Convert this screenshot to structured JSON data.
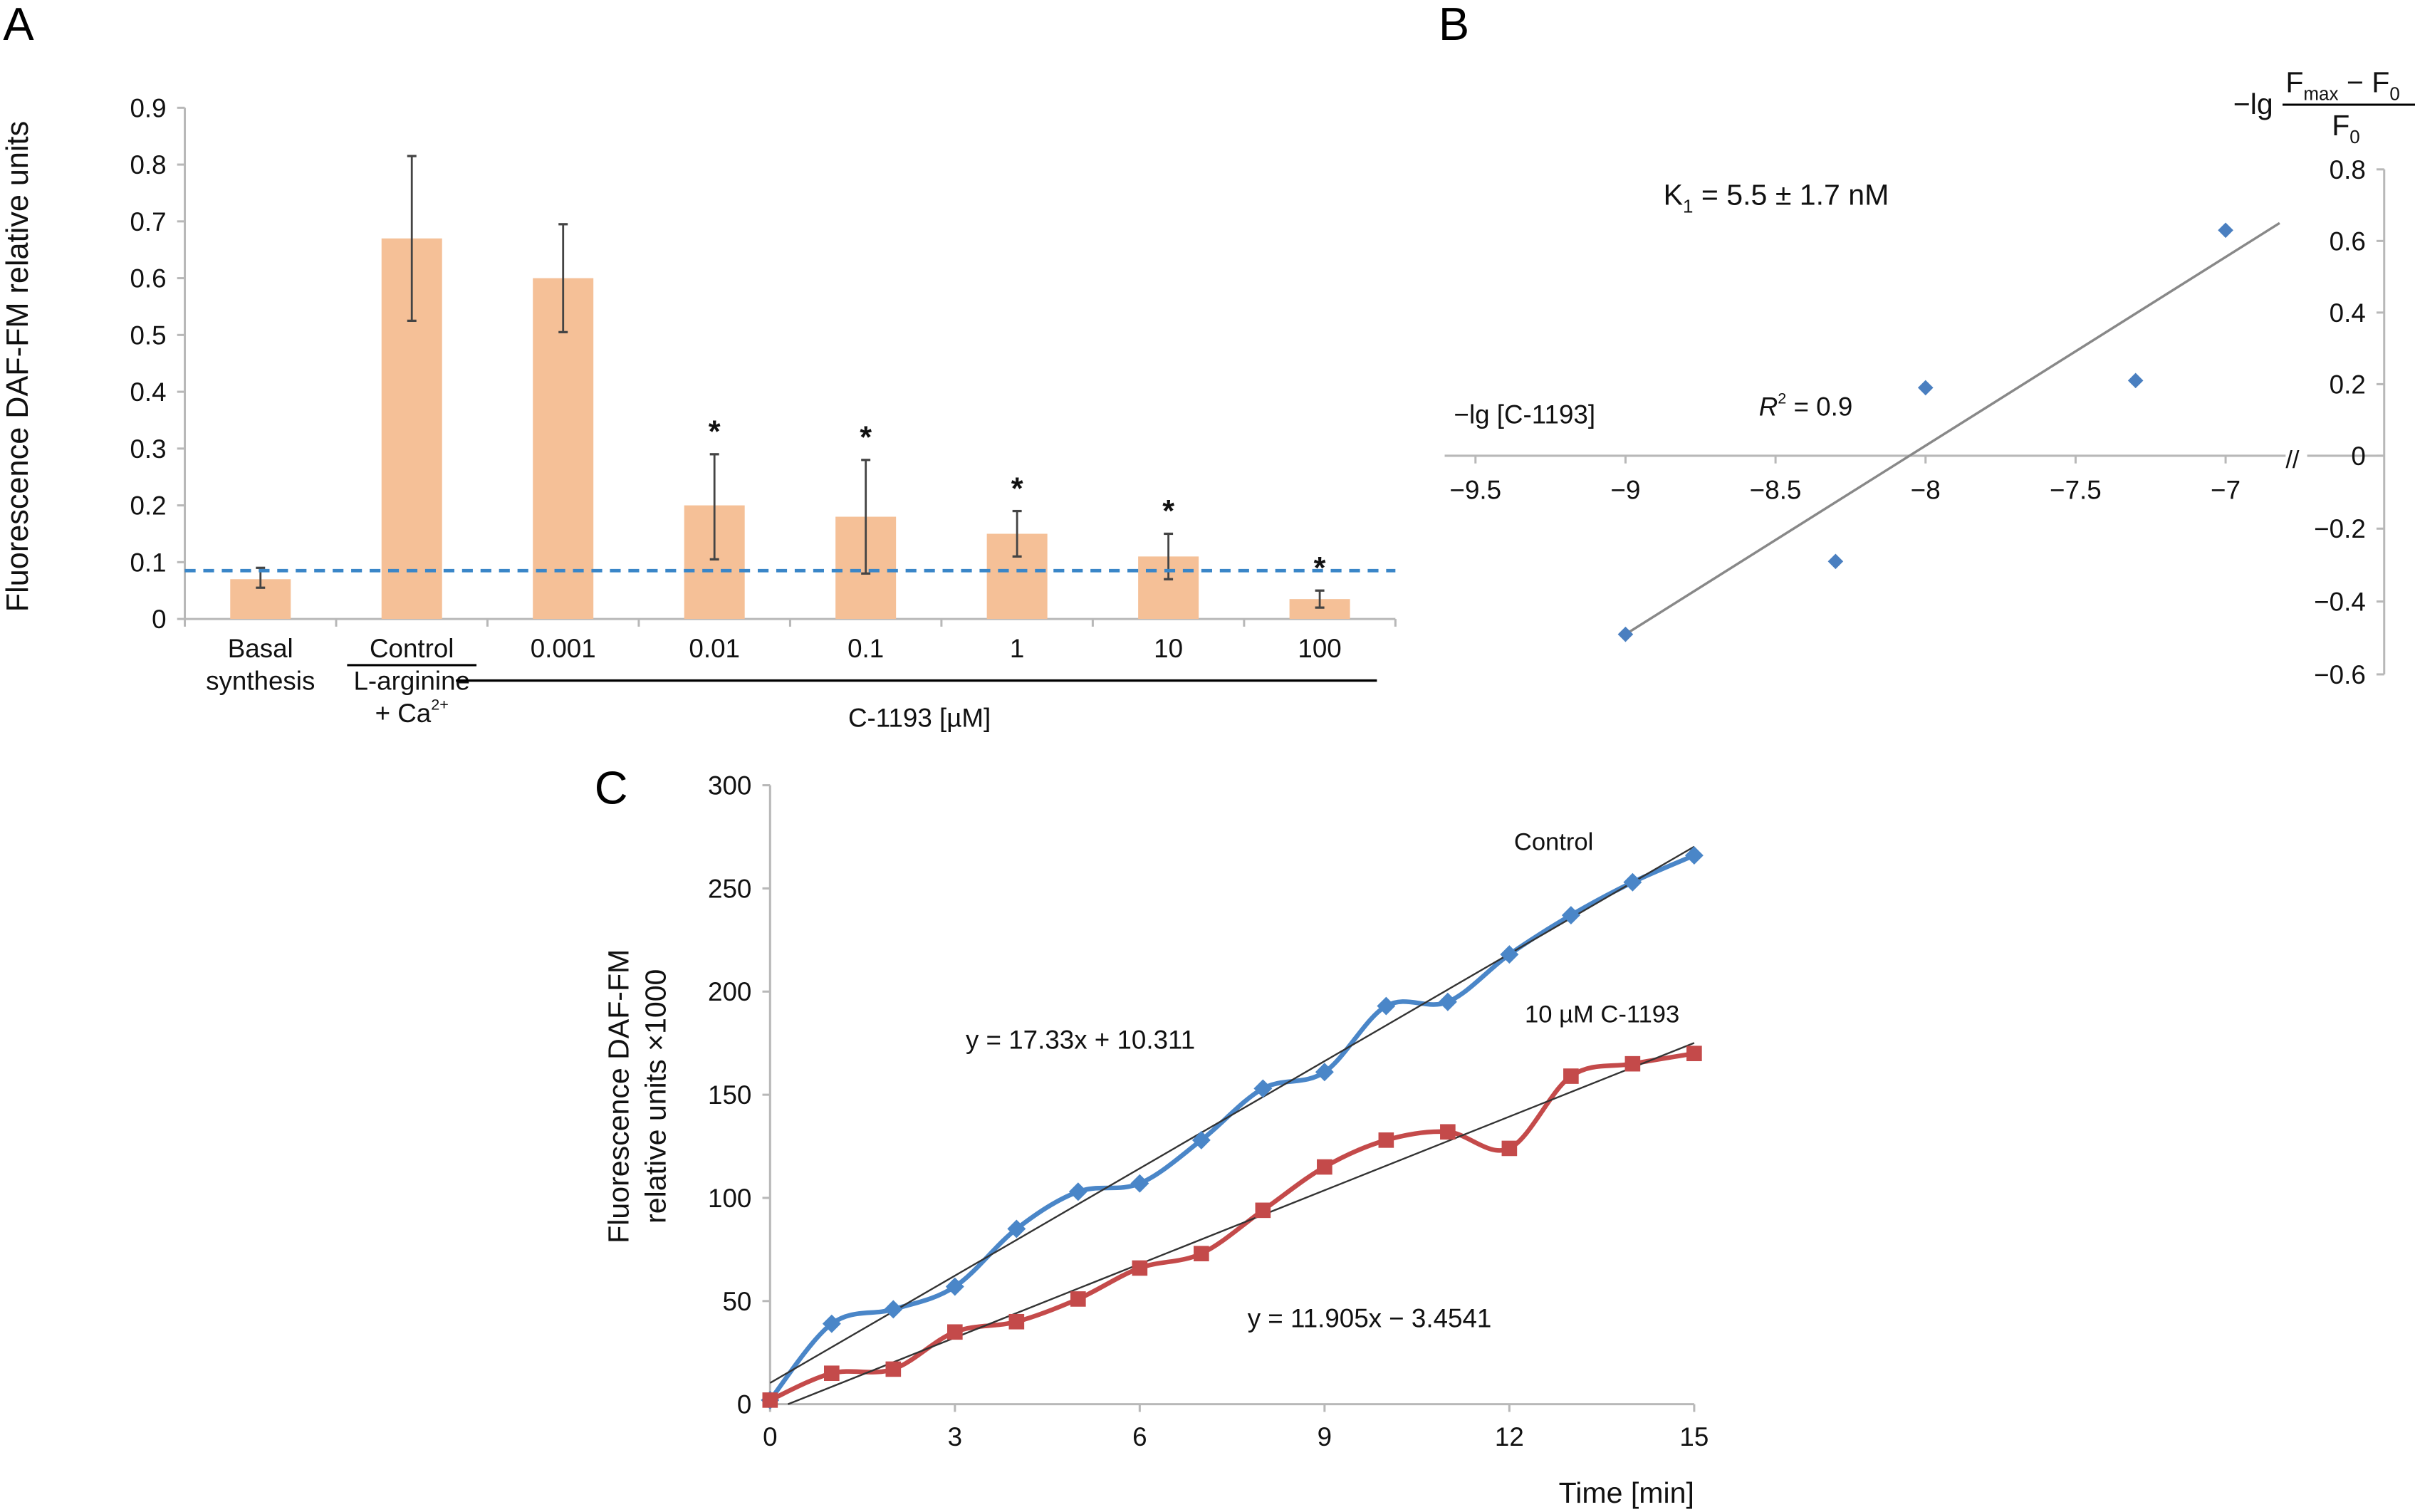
{
  "figure": {
    "panels": [
      "A",
      "B",
      "C"
    ]
  },
  "colors": {
    "bar": "#f5c097",
    "dashed_line": "#3a86c8",
    "control_series": "#4a86c8",
    "c1193_series": "#c44a4a",
    "trendline": "#333333",
    "scatter": "#4a7fc0"
  },
  "chart_data": [
    {
      "id": "A",
      "type": "bar",
      "panel_label": "A",
      "title": "",
      "ylabel": "Fluorescence DAF-FM relative units",
      "xlabel": "C-1193 [µM]",
      "ylim": [
        0,
        0.9
      ],
      "yticks": [
        "0",
        "0.1",
        "0.2",
        "0.3",
        "0.4",
        "0.5",
        "0.6",
        "0.7",
        "0.8",
        "0.9"
      ],
      "categories": [
        "Basal synthesis",
        "Control L-arginine + Ca2+",
        "0.001",
        "0.01",
        "0.1",
        "1",
        "10",
        "100"
      ],
      "category_labels": [
        {
          "lines": [
            "Basal",
            "synthesis"
          ]
        },
        {
          "lines": [
            "Control",
            "L-arginine",
            "+ Ca"
          ],
          "superscript": "2+"
        },
        {
          "lines": [
            "0.001"
          ]
        },
        {
          "lines": [
            "0.01"
          ]
        },
        {
          "lines": [
            "0.1"
          ]
        },
        {
          "lines": [
            "1"
          ]
        },
        {
          "lines": [
            "10"
          ]
        },
        {
          "lines": [
            "100"
          ]
        }
      ],
      "values": [
        0.07,
        0.67,
        0.6,
        0.2,
        0.18,
        0.15,
        0.11,
        0.035
      ],
      "error_low": [
        0.055,
        0.525,
        0.505,
        0.105,
        0.08,
        0.11,
        0.07,
        0.02
      ],
      "error_high": [
        0.09,
        0.815,
        0.695,
        0.29,
        0.28,
        0.19,
        0.15,
        0.05
      ],
      "significance": [
        "",
        "",
        "",
        "*",
        "*",
        "*",
        "*",
        "*"
      ],
      "reference_line": 0.085,
      "group_label": "C-1193 [µM]",
      "grid": false
    },
    {
      "id": "B",
      "type": "scatter",
      "panel_label": "B",
      "xlabel": "−lg [C-1193]",
      "ylabel_parts": {
        "prefix": "−lg",
        "numerator": "F",
        "numerator_sub": "max",
        "numerator_rest": " − F",
        "numerator_rest_sub": "0",
        "denominator": "F",
        "denominator_sub": "0"
      },
      "xlim": [
        -9.5,
        -6.8
      ],
      "ylim": [
        -0.6,
        0.8
      ],
      "xticks": [
        "−9.5",
        "−9",
        "−8.5",
        "−8",
        "−7.5",
        "−7"
      ],
      "xtick_values": [
        -9.5,
        -9,
        -8.5,
        -8,
        -7.5,
        -7
      ],
      "yticks": [
        "−0.6",
        "−0.4",
        "−0.2",
        "0",
        "0.2",
        "0.4",
        "0.6",
        "0.8"
      ],
      "ytick_values": [
        -0.6,
        -0.4,
        -0.2,
        0,
        0.2,
        0.4,
        0.6,
        0.8
      ],
      "points": [
        {
          "x": -9.0,
          "y": -0.49
        },
        {
          "x": -8.3,
          "y": -0.29
        },
        {
          "x": -8.0,
          "y": 0.19
        },
        {
          "x": -7.3,
          "y": 0.21
        },
        {
          "x": -7.0,
          "y": 0.63
        }
      ],
      "trendline": {
        "x": [
          -9.0,
          -6.82
        ],
        "y": [
          -0.49,
          0.65
        ]
      },
      "annotations": {
        "ki": "K",
        "ki_sub": "1",
        "ki_rest": " = 5.5 ± 1.7 nM",
        "r2_r": "R",
        "r2_sup": "2",
        "r2_rest": " = 0.9",
        "axis_break": "//"
      },
      "grid": false
    },
    {
      "id": "C",
      "type": "line",
      "panel_label": "C",
      "xlabel": "Time [min]",
      "ylabel_lines": [
        "Fluorescence DAF-FM",
        "relative units ×1000"
      ],
      "xlim": [
        0,
        15
      ],
      "ylim": [
        0,
        300
      ],
      "xticks": [
        "0",
        "3",
        "6",
        "9",
        "12",
        "15"
      ],
      "yticks": [
        "0",
        "50",
        "100",
        "150",
        "200",
        "250",
        "300"
      ],
      "x": [
        0,
        1,
        2,
        3,
        4,
        5,
        6,
        7,
        8,
        9,
        10,
        11,
        12,
        13,
        14,
        15
      ],
      "series": [
        {
          "name": "Control",
          "marker": "diamond",
          "values": [
            2,
            39,
            46,
            57,
            85,
            103,
            107,
            128,
            153,
            161,
            193,
            195,
            218,
            237,
            253,
            266
          ],
          "trend_equation": "y = 17.33x + 10.311",
          "trend_slope": 17.33,
          "trend_intercept": 10.311
        },
        {
          "name": "10 µM C-1193",
          "marker": "square",
          "values": [
            2,
            15,
            17,
            35,
            40,
            51,
            66,
            73,
            94,
            115,
            128,
            132,
            124,
            159,
            165,
            170
          ],
          "trend_equation": "y = 11.905x − 3.4541",
          "trend_slope": 11.905,
          "trend_intercept": -3.4541
        }
      ],
      "grid": false
    }
  ]
}
